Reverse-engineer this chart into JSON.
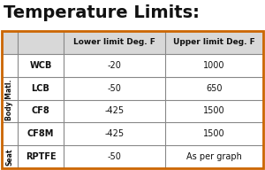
{
  "title": "Temperature Limits:",
  "col_headers": [
    "Lower limit Deg. F",
    "Upper limit Deg. F"
  ],
  "row_labels_group1": [
    "WCB",
    "LCB",
    "CF8",
    "CF8M"
  ],
  "row_labels_group2": [
    "RPTFE"
  ],
  "group1_label": "Body Matl.",
  "group2_label": "Seat",
  "data_group1": [
    [
      "-20",
      "1000"
    ],
    [
      "-50",
      "650"
    ],
    [
      "-425",
      "1500"
    ],
    [
      "-425",
      "1500"
    ]
  ],
  "data_group2": [
    [
      "-50",
      "As per graph"
    ]
  ],
  "bg_color": "#ffffff",
  "border_color": "#888888",
  "header_bg": "#d8d8d8",
  "title_color": "#111111",
  "text_color": "#111111",
  "orange_border": "#cc6600",
  "fig_w": 3.0,
  "fig_h": 1.92,
  "dpi": 100
}
